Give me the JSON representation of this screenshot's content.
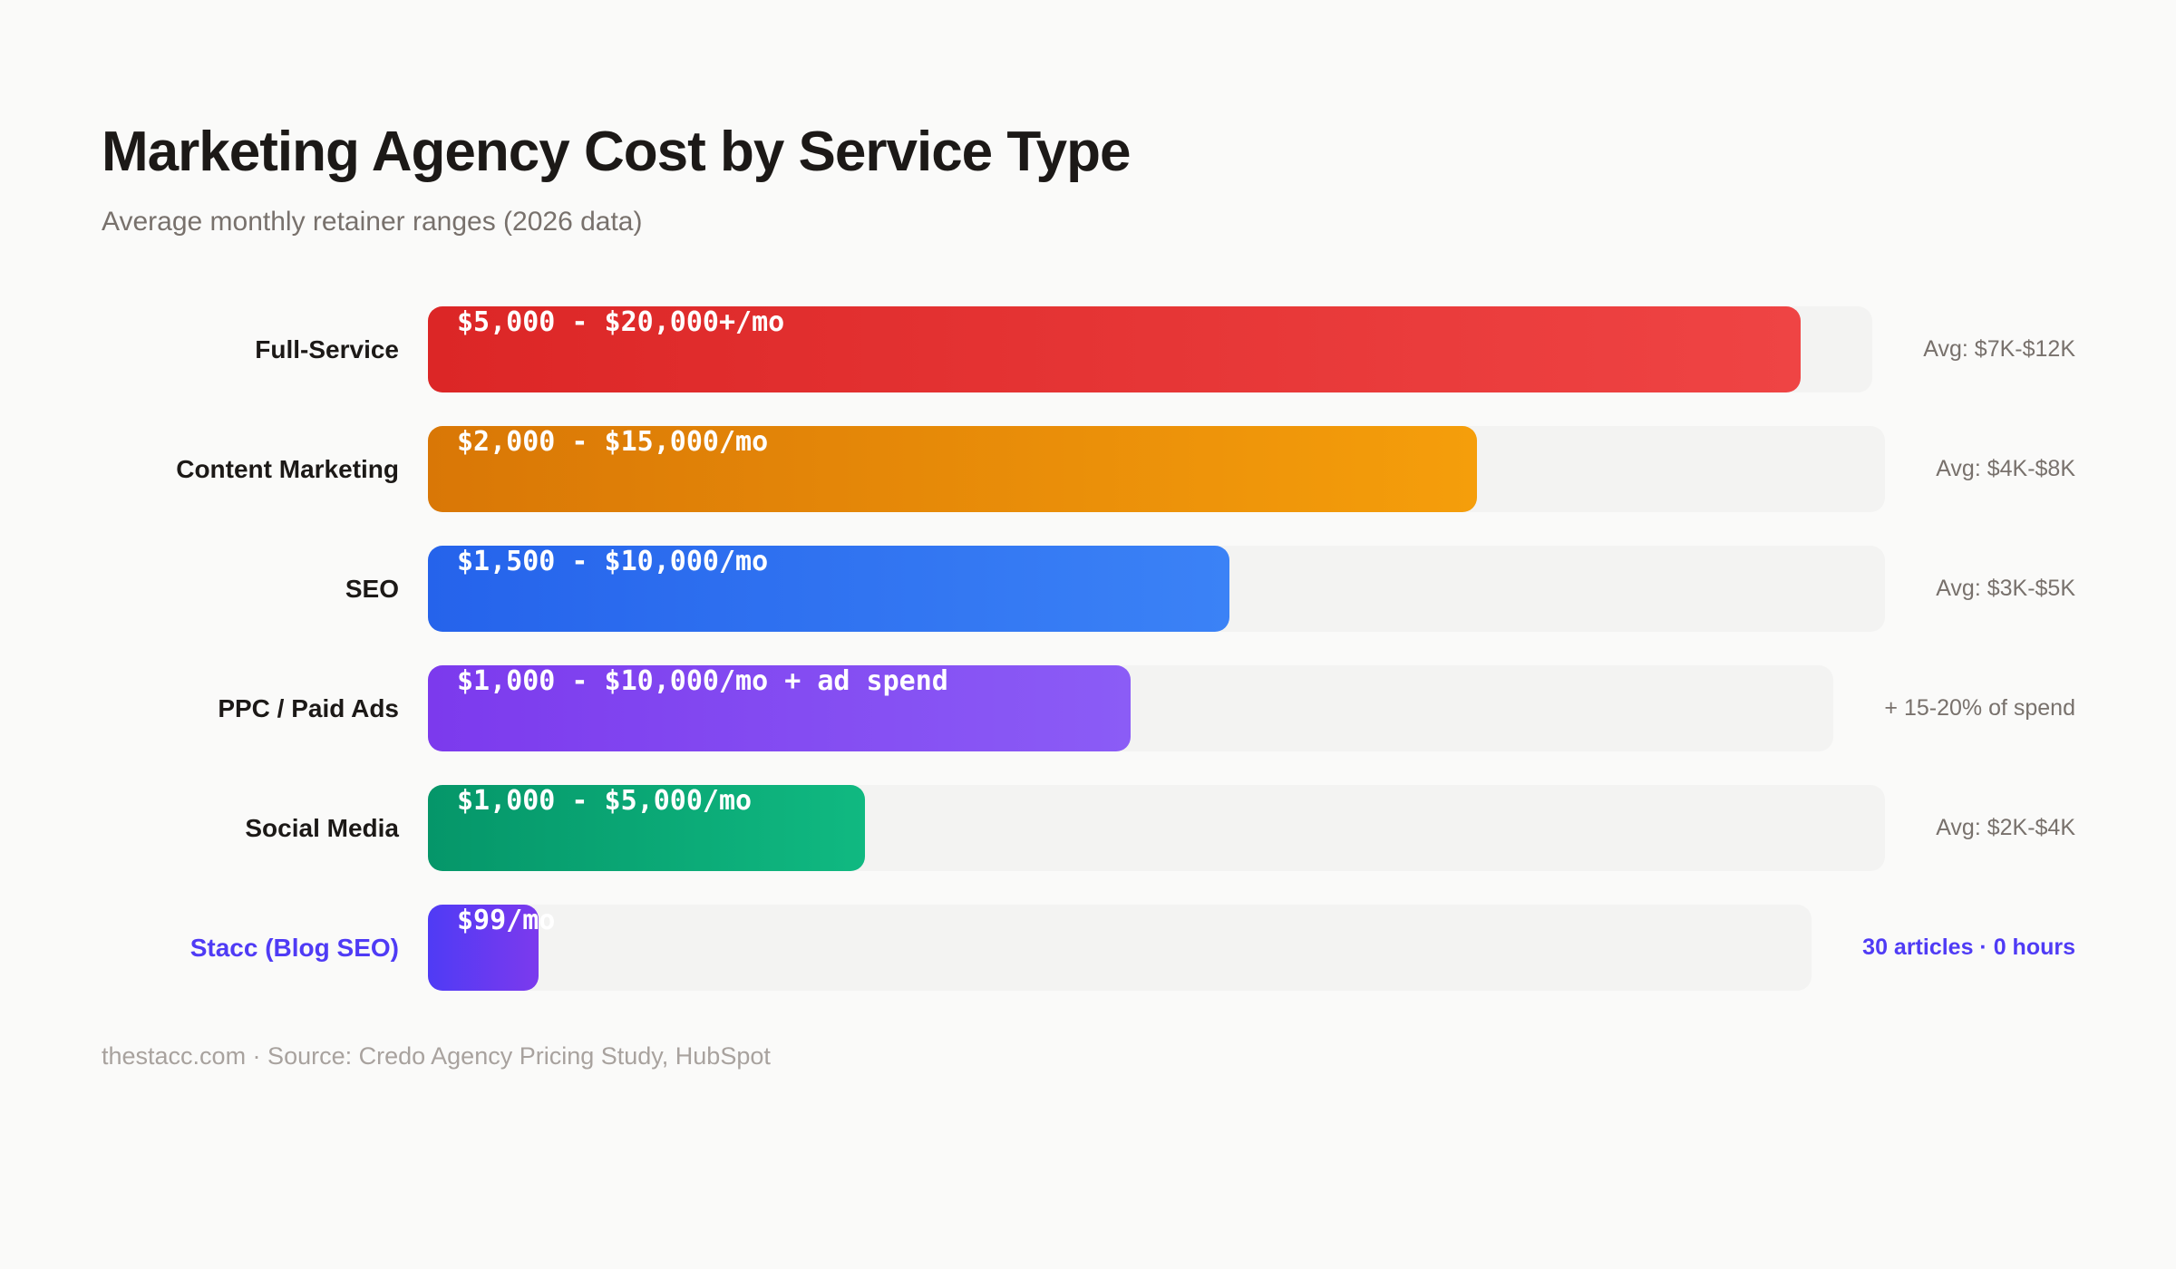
{
  "chart_data": {
    "type": "bar",
    "title": "Marketing Agency Cost by Service Type",
    "subtitle": "Average monthly retainer ranges (2026 data)",
    "orientation": "horizontal",
    "grid": false,
    "categories": [
      "Full-Service",
      "Content Marketing",
      "SEO",
      "PPC / Paid Ads",
      "Social Media",
      "Stacc (Blog SEO)"
    ],
    "series": [
      {
        "values": [
          0.95,
          0.72,
          0.55,
          0.5,
          0.3,
          0.08
        ],
        "bar_labels": [
          "$5,000 - $20,000+/mo",
          "$2,000 - $15,000/mo",
          "$1,500 - $10,000/mo",
          "$1,000 - $10,000/mo + ad spend",
          "$1,000 - $5,000/mo",
          "$99/mo"
        ],
        "notes": [
          "Avg: $7K-$12K",
          "Avg: $4K-$8K",
          "Avg: $3K-$5K",
          "+ 15-20% of spend",
          "Avg: $2K-$4K",
          "30 articles · 0 hours"
        ],
        "colors": [
          [
            "#dc2626",
            "#ef4444"
          ],
          [
            "#d97706",
            "#f59e0b"
          ],
          [
            "#2563eb",
            "#3b82f6"
          ],
          [
            "#7c3aed",
            "#8b5cf6"
          ],
          [
            "#059669",
            "#10b981"
          ],
          [
            "#4f3bf5",
            "#7c3aed"
          ]
        ],
        "highlight": [
          false,
          false,
          false,
          false,
          false,
          true
        ]
      }
    ],
    "footer": "thestacc.com · Source: Credo Agency Pricing Study, HubSpot"
  }
}
